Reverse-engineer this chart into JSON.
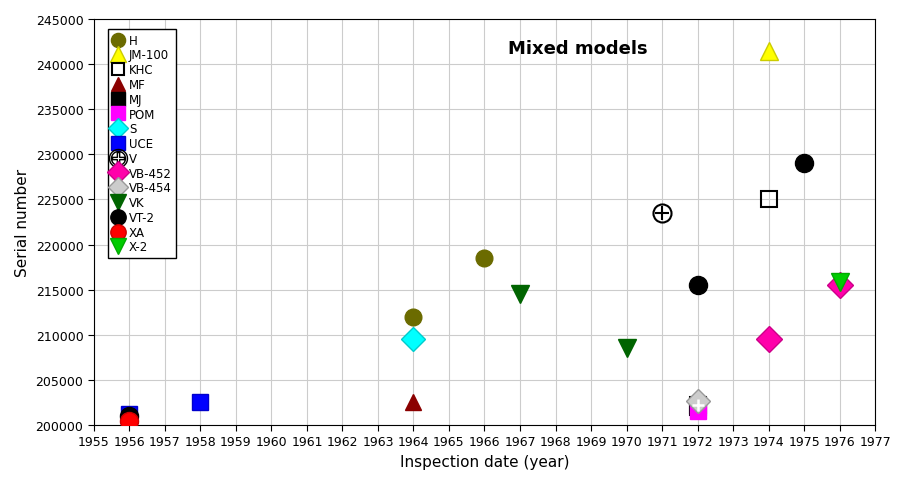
{
  "title": "Mixed models",
  "xlabel": "Inspection date (year)",
  "ylabel": "Serial number",
  "xlim": [
    1955,
    1977
  ],
  "ylim": [
    200000,
    245000
  ],
  "xticks": [
    1955,
    1956,
    1957,
    1958,
    1959,
    1960,
    1961,
    1962,
    1963,
    1964,
    1965,
    1966,
    1967,
    1968,
    1969,
    1970,
    1971,
    1972,
    1973,
    1974,
    1975,
    1976,
    1977
  ],
  "yticks": [
    200000,
    205000,
    210000,
    215000,
    220000,
    225000,
    230000,
    235000,
    240000,
    245000
  ],
  "series": [
    {
      "label": "H",
      "color": "#6b6b00",
      "marker": "o",
      "markersize": 12,
      "markerfacecolor": "#6b6b00",
      "special": null,
      "points": [
        [
          1964,
          212000
        ],
        [
          1966,
          218500
        ]
      ]
    },
    {
      "label": "JM-100",
      "color": "#cccc00",
      "marker": "^",
      "markersize": 13,
      "markerfacecolor": "#ffff00",
      "special": null,
      "points": [
        [
          1974,
          241500
        ]
      ]
    },
    {
      "label": "KHC",
      "color": "#000000",
      "marker": "s",
      "markersize": 11,
      "markerfacecolor": "none",
      "special": null,
      "points": [
        [
          1972,
          202000
        ],
        [
          1974,
          225000
        ]
      ]
    },
    {
      "label": "MF",
      "color": "#8b0000",
      "marker": "^",
      "markersize": 12,
      "markerfacecolor": "#8b0000",
      "special": null,
      "points": [
        [
          1964,
          202500
        ]
      ]
    },
    {
      "label": "MJ",
      "color": "#000000",
      "marker": "s",
      "markersize": 12,
      "markerfacecolor": "#000000",
      "special": "plus_square",
      "points": [
        [
          1972,
          202200
        ]
      ]
    },
    {
      "label": "POM",
      "color": "#ff00ff",
      "marker": "s",
      "markersize": 12,
      "markerfacecolor": "#ff00ff",
      "special": null,
      "points": [
        [
          1972,
          201500
        ]
      ]
    },
    {
      "label": "S",
      "color": "#00cccc",
      "marker": "D",
      "markersize": 12,
      "markerfacecolor": "#00ffff",
      "special": null,
      "points": [
        [
          1964,
          209500
        ]
      ]
    },
    {
      "label": "UCE",
      "color": "#0000cc",
      "marker": "s",
      "markersize": 12,
      "markerfacecolor": "#0000ff",
      "special": null,
      "points": [
        [
          1956,
          201200
        ],
        [
          1958,
          202500
        ]
      ]
    },
    {
      "label": "V",
      "color": "#000000",
      "marker": "o",
      "markersize": 13,
      "markerfacecolor": "none",
      "special": "circle_plus",
      "points": [
        [
          1971,
          223500
        ]
      ]
    },
    {
      "label": "VB-452",
      "color": "#cc0088",
      "marker": "D",
      "markersize": 13,
      "markerfacecolor": "#ff00aa",
      "special": null,
      "points": [
        [
          1974,
          209500
        ],
        [
          1976,
          215500
        ]
      ]
    },
    {
      "label": "VB-454",
      "color": "#999999",
      "marker": "D",
      "markersize": 12,
      "markerfacecolor": "#cccccc",
      "special": null,
      "points": [
        [
          1972,
          202700
        ]
      ]
    },
    {
      "label": "VK",
      "color": "#006400",
      "marker": "v",
      "markersize": 13,
      "markerfacecolor": "#006400",
      "special": null,
      "points": [
        [
          1967,
          214500
        ],
        [
          1970,
          208500
        ]
      ]
    },
    {
      "label": "VT-2",
      "color": "#000000",
      "marker": "o",
      "markersize": 13,
      "markerfacecolor": "#000000",
      "special": null,
      "points": [
        [
          1956,
          201000
        ],
        [
          1972,
          215500
        ],
        [
          1975,
          229000
        ]
      ]
    },
    {
      "label": "XA",
      "color": "#cc0000",
      "marker": "o",
      "markersize": 13,
      "markerfacecolor": "#ff0000",
      "special": null,
      "points": [
        [
          1956,
          200500
        ]
      ]
    },
    {
      "label": "X-2",
      "color": "#00aa00",
      "marker": "v",
      "markersize": 13,
      "markerfacecolor": "#00cc00",
      "special": null,
      "points": [
        [
          1976,
          215800
        ]
      ]
    }
  ]
}
